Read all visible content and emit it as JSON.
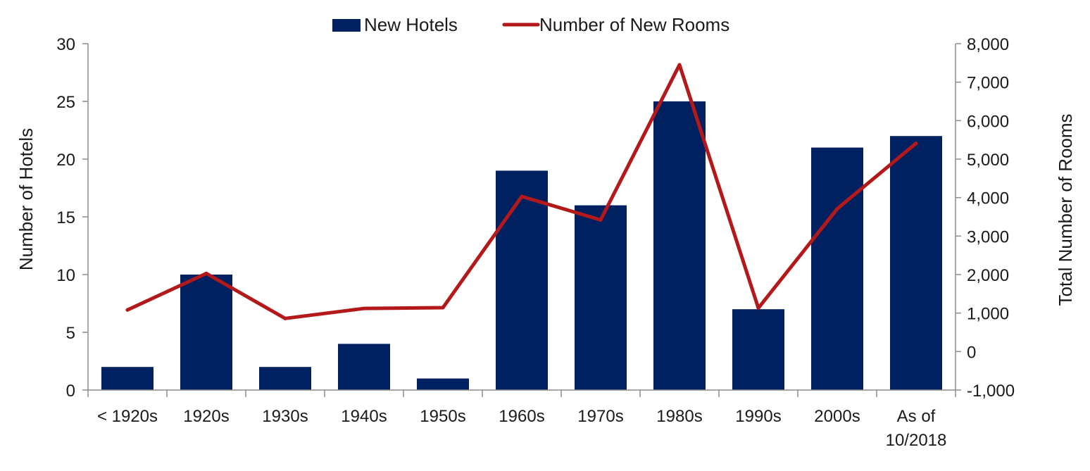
{
  "chart_data": {
    "type": "bar",
    "categories": [
      "< 1920s",
      "1920s",
      "1930s",
      "1940s",
      "1950s",
      "1960s",
      "1970s",
      "1980s",
      "1990s",
      "2000s",
      "As of 10/2018"
    ],
    "ylabel": "Number of Hotels",
    "y2label": "Total Number of Rooms",
    "ylim": [
      0,
      30
    ],
    "yticks": [
      "0",
      "5",
      "10",
      "15",
      "20",
      "25",
      "30"
    ],
    "y2lim": [
      -1000,
      8000
    ],
    "y2ticks": [
      "-1,000",
      "0",
      "1,000",
      "2,000",
      "3,000",
      "4,000",
      "5,000",
      "6,000",
      "7,000",
      "8,000"
    ],
    "legend_position": "top-center",
    "grid": false,
    "series": [
      {
        "name": "New Hotels",
        "type": "bar",
        "axis": "left",
        "color": "#002060",
        "values": [
          2,
          10,
          2,
          4,
          1,
          19,
          16,
          25,
          7,
          21,
          22
        ]
      },
      {
        "name": "Number of New Rooms",
        "type": "line",
        "axis": "right",
        "color": "#b3191a",
        "values": [
          1080,
          2030,
          860,
          1120,
          1140,
          4030,
          3420,
          7450,
          1130,
          3710,
          5410
        ]
      }
    ]
  }
}
